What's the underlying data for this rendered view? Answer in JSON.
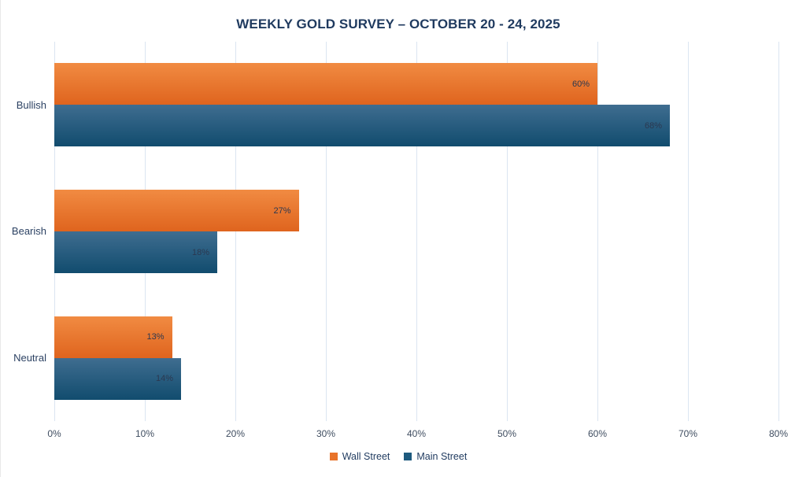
{
  "title": "WEEKLY GOLD SURVEY – OCTOBER 20 - 24, 2025",
  "chart_data": {
    "type": "bar",
    "orientation": "horizontal",
    "title": "WEEKLY GOLD SURVEY – OCTOBER 20 - 24, 2025",
    "categories": [
      "Bullish",
      "Bearish",
      "Neutral"
    ],
    "series": [
      {
        "name": "Wall Street",
        "values": [
          60,
          27,
          13
        ],
        "color_top": "#f18b42",
        "color_bottom": "#df641e",
        "swatch_color": "#e8732a"
      },
      {
        "name": "Main Street",
        "values": [
          68,
          18,
          14
        ],
        "color_top": "#3f6d90",
        "color_bottom": "#114c6e",
        "swatch_color": "#1e5a7e"
      }
    ],
    "value_suffix": "%",
    "xlabel": "",
    "ylabel": "",
    "xlim": [
      0,
      80
    ],
    "x_ticks": [
      "0%",
      "10%",
      "20%",
      "30%",
      "40%",
      "50%",
      "60%",
      "70%",
      "80%"
    ],
    "grid": true,
    "gridline_color": "#dbe5f1",
    "data_label_color": "#2b3850",
    "title_color": "#1f3a5f",
    "legend_position": "bottom"
  }
}
